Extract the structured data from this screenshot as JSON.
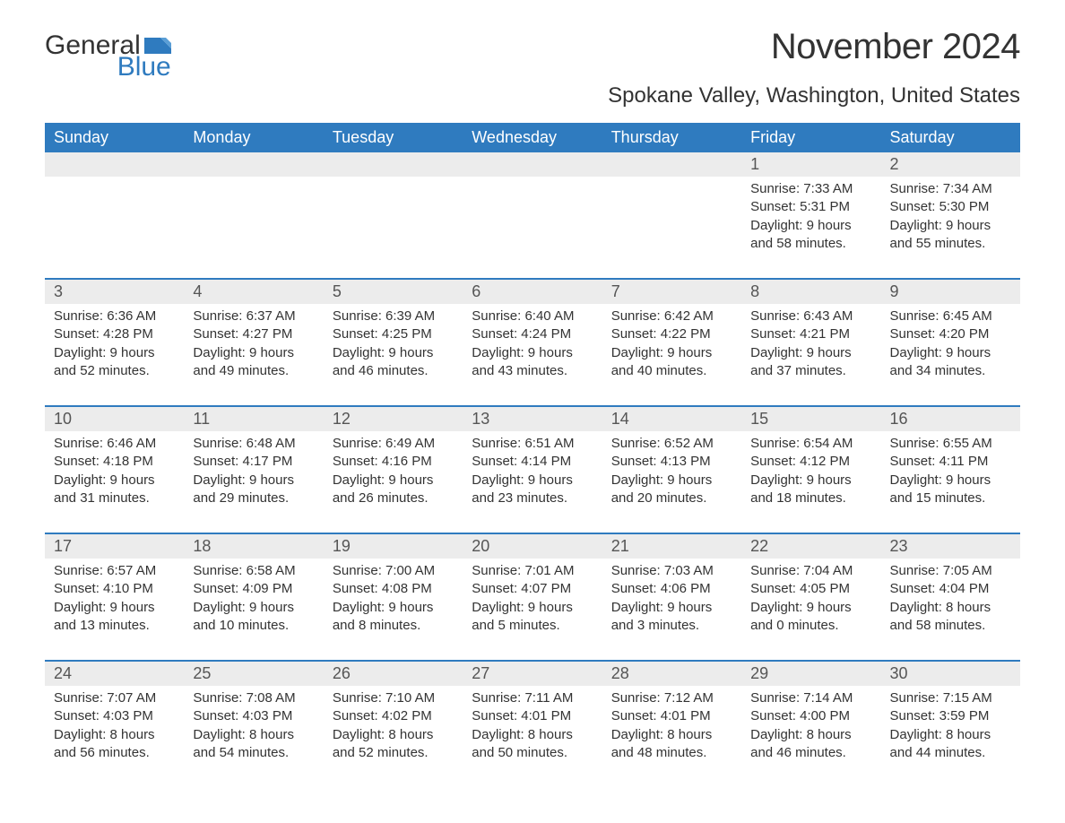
{
  "logo": {
    "text_general": "General",
    "text_blue": "Blue",
    "flag_color": "#2f7bbf"
  },
  "header": {
    "month_title": "November 2024",
    "location": "Spokane Valley, Washington, United States"
  },
  "colors": {
    "header_bg": "#2f7bbf",
    "header_text": "#ffffff",
    "day_number_bg": "#ececec",
    "body_text": "#333333",
    "row_divider": "#2f7bbf"
  },
  "weekdays": [
    "Sunday",
    "Monday",
    "Tuesday",
    "Wednesday",
    "Thursday",
    "Friday",
    "Saturday"
  ],
  "weeks": [
    [
      null,
      null,
      null,
      null,
      null,
      {
        "day": "1",
        "sunrise": "Sunrise: 7:33 AM",
        "sunset": "Sunset: 5:31 PM",
        "daylight1": "Daylight: 9 hours",
        "daylight2": "and 58 minutes."
      },
      {
        "day": "2",
        "sunrise": "Sunrise: 7:34 AM",
        "sunset": "Sunset: 5:30 PM",
        "daylight1": "Daylight: 9 hours",
        "daylight2": "and 55 minutes."
      }
    ],
    [
      {
        "day": "3",
        "sunrise": "Sunrise: 6:36 AM",
        "sunset": "Sunset: 4:28 PM",
        "daylight1": "Daylight: 9 hours",
        "daylight2": "and 52 minutes."
      },
      {
        "day": "4",
        "sunrise": "Sunrise: 6:37 AM",
        "sunset": "Sunset: 4:27 PM",
        "daylight1": "Daylight: 9 hours",
        "daylight2": "and 49 minutes."
      },
      {
        "day": "5",
        "sunrise": "Sunrise: 6:39 AM",
        "sunset": "Sunset: 4:25 PM",
        "daylight1": "Daylight: 9 hours",
        "daylight2": "and 46 minutes."
      },
      {
        "day": "6",
        "sunrise": "Sunrise: 6:40 AM",
        "sunset": "Sunset: 4:24 PM",
        "daylight1": "Daylight: 9 hours",
        "daylight2": "and 43 minutes."
      },
      {
        "day": "7",
        "sunrise": "Sunrise: 6:42 AM",
        "sunset": "Sunset: 4:22 PM",
        "daylight1": "Daylight: 9 hours",
        "daylight2": "and 40 minutes."
      },
      {
        "day": "8",
        "sunrise": "Sunrise: 6:43 AM",
        "sunset": "Sunset: 4:21 PM",
        "daylight1": "Daylight: 9 hours",
        "daylight2": "and 37 minutes."
      },
      {
        "day": "9",
        "sunrise": "Sunrise: 6:45 AM",
        "sunset": "Sunset: 4:20 PM",
        "daylight1": "Daylight: 9 hours",
        "daylight2": "and 34 minutes."
      }
    ],
    [
      {
        "day": "10",
        "sunrise": "Sunrise: 6:46 AM",
        "sunset": "Sunset: 4:18 PM",
        "daylight1": "Daylight: 9 hours",
        "daylight2": "and 31 minutes."
      },
      {
        "day": "11",
        "sunrise": "Sunrise: 6:48 AM",
        "sunset": "Sunset: 4:17 PM",
        "daylight1": "Daylight: 9 hours",
        "daylight2": "and 29 minutes."
      },
      {
        "day": "12",
        "sunrise": "Sunrise: 6:49 AM",
        "sunset": "Sunset: 4:16 PM",
        "daylight1": "Daylight: 9 hours",
        "daylight2": "and 26 minutes."
      },
      {
        "day": "13",
        "sunrise": "Sunrise: 6:51 AM",
        "sunset": "Sunset: 4:14 PM",
        "daylight1": "Daylight: 9 hours",
        "daylight2": "and 23 minutes."
      },
      {
        "day": "14",
        "sunrise": "Sunrise: 6:52 AM",
        "sunset": "Sunset: 4:13 PM",
        "daylight1": "Daylight: 9 hours",
        "daylight2": "and 20 minutes."
      },
      {
        "day": "15",
        "sunrise": "Sunrise: 6:54 AM",
        "sunset": "Sunset: 4:12 PM",
        "daylight1": "Daylight: 9 hours",
        "daylight2": "and 18 minutes."
      },
      {
        "day": "16",
        "sunrise": "Sunrise: 6:55 AM",
        "sunset": "Sunset: 4:11 PM",
        "daylight1": "Daylight: 9 hours",
        "daylight2": "and 15 minutes."
      }
    ],
    [
      {
        "day": "17",
        "sunrise": "Sunrise: 6:57 AM",
        "sunset": "Sunset: 4:10 PM",
        "daylight1": "Daylight: 9 hours",
        "daylight2": "and 13 minutes."
      },
      {
        "day": "18",
        "sunrise": "Sunrise: 6:58 AM",
        "sunset": "Sunset: 4:09 PM",
        "daylight1": "Daylight: 9 hours",
        "daylight2": "and 10 minutes."
      },
      {
        "day": "19",
        "sunrise": "Sunrise: 7:00 AM",
        "sunset": "Sunset: 4:08 PM",
        "daylight1": "Daylight: 9 hours",
        "daylight2": "and 8 minutes."
      },
      {
        "day": "20",
        "sunrise": "Sunrise: 7:01 AM",
        "sunset": "Sunset: 4:07 PM",
        "daylight1": "Daylight: 9 hours",
        "daylight2": "and 5 minutes."
      },
      {
        "day": "21",
        "sunrise": "Sunrise: 7:03 AM",
        "sunset": "Sunset: 4:06 PM",
        "daylight1": "Daylight: 9 hours",
        "daylight2": "and 3 minutes."
      },
      {
        "day": "22",
        "sunrise": "Sunrise: 7:04 AM",
        "sunset": "Sunset: 4:05 PM",
        "daylight1": "Daylight: 9 hours",
        "daylight2": "and 0 minutes."
      },
      {
        "day": "23",
        "sunrise": "Sunrise: 7:05 AM",
        "sunset": "Sunset: 4:04 PM",
        "daylight1": "Daylight: 8 hours",
        "daylight2": "and 58 minutes."
      }
    ],
    [
      {
        "day": "24",
        "sunrise": "Sunrise: 7:07 AM",
        "sunset": "Sunset: 4:03 PM",
        "daylight1": "Daylight: 8 hours",
        "daylight2": "and 56 minutes."
      },
      {
        "day": "25",
        "sunrise": "Sunrise: 7:08 AM",
        "sunset": "Sunset: 4:03 PM",
        "daylight1": "Daylight: 8 hours",
        "daylight2": "and 54 minutes."
      },
      {
        "day": "26",
        "sunrise": "Sunrise: 7:10 AM",
        "sunset": "Sunset: 4:02 PM",
        "daylight1": "Daylight: 8 hours",
        "daylight2": "and 52 minutes."
      },
      {
        "day": "27",
        "sunrise": "Sunrise: 7:11 AM",
        "sunset": "Sunset: 4:01 PM",
        "daylight1": "Daylight: 8 hours",
        "daylight2": "and 50 minutes."
      },
      {
        "day": "28",
        "sunrise": "Sunrise: 7:12 AM",
        "sunset": "Sunset: 4:01 PM",
        "daylight1": "Daylight: 8 hours",
        "daylight2": "and 48 minutes."
      },
      {
        "day": "29",
        "sunrise": "Sunrise: 7:14 AM",
        "sunset": "Sunset: 4:00 PM",
        "daylight1": "Daylight: 8 hours",
        "daylight2": "and 46 minutes."
      },
      {
        "day": "30",
        "sunrise": "Sunrise: 7:15 AM",
        "sunset": "Sunset: 3:59 PM",
        "daylight1": "Daylight: 8 hours",
        "daylight2": "and 44 minutes."
      }
    ]
  ]
}
